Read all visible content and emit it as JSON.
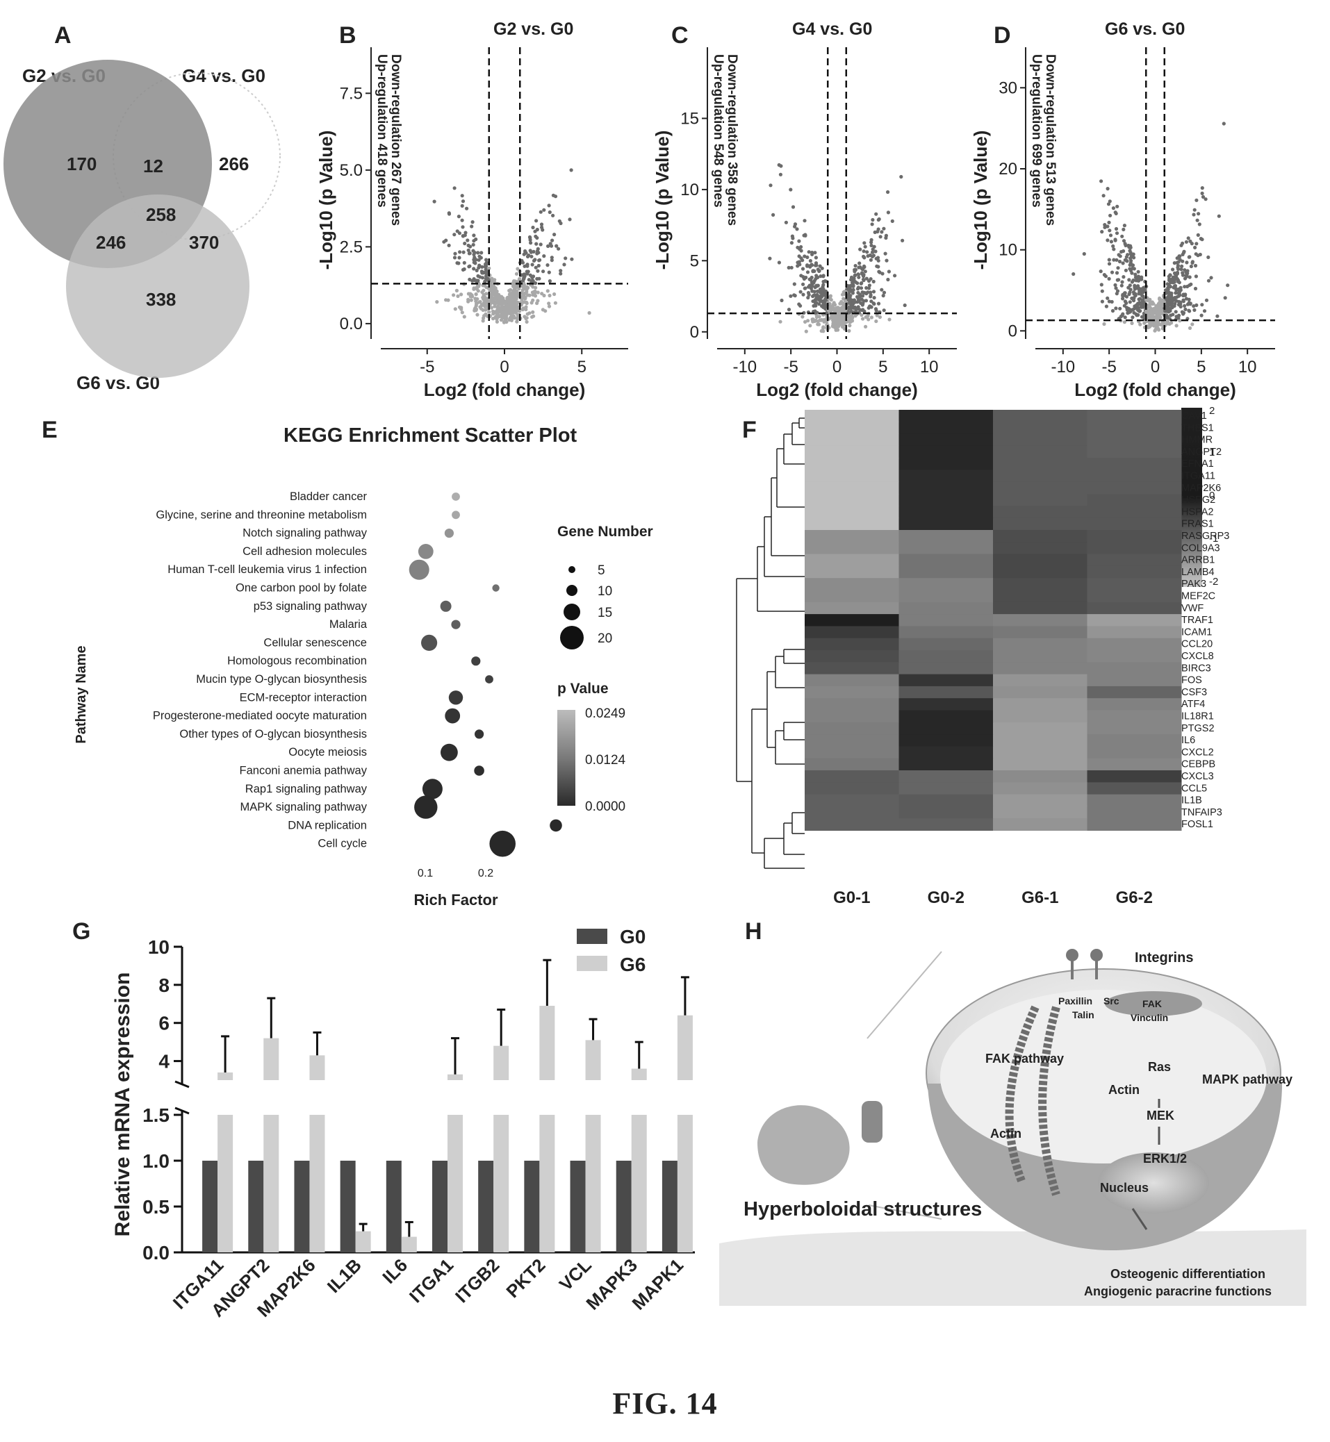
{
  "figure_caption": "FIG. 14",
  "panel_letters": {
    "A": "A",
    "B": "B",
    "C": "C",
    "D": "D",
    "E": "E",
    "F": "F",
    "G": "G",
    "H": "H"
  },
  "venn": {
    "sets": [
      "G2 vs. G0",
      "G4 vs. G0",
      "G6 vs. G0"
    ],
    "regions": {
      "g2_only": "170",
      "g2_g4": "12",
      "g4_only": "266",
      "all": "258",
      "g2_g6": "246",
      "g4_g6": "370",
      "g6_only": "338"
    }
  },
  "volcano": [
    {
      "title": "G2 vs. G0",
      "down": "Down-regulation 267 genes",
      "up": "Up-regulation 418 genes",
      "yticks": [
        "0.0",
        "2.5",
        "5.0",
        "7.5"
      ],
      "xticks": [
        "-5",
        "0",
        "5"
      ]
    },
    {
      "title": "G4 vs. G0",
      "down": "Down-regulation 358 genes",
      "up": "Up-regulation 548 genes",
      "yticks": [
        "0",
        "5",
        "10",
        "15"
      ],
      "xticks": [
        "-10",
        "-5",
        "0",
        "5",
        "10"
      ]
    },
    {
      "title": "G6 vs. G0",
      "down": "Down-regulation 513 genes",
      "up": "Up-regulation 699 genes",
      "yticks": [
        "0",
        "10",
        "20",
        "30"
      ],
      "xticks": [
        "-10",
        "-5",
        "0",
        "5",
        "10"
      ]
    }
  ],
  "volcano_axes": {
    "ylabel": "-Log10 (p Value)",
    "xlabel": "Log2 (fold change)"
  },
  "kegg": {
    "title": "KEGG Enrichment Scatter Plot",
    "ylabel": "Pathway Name",
    "xlabel": "Rich Factor",
    "xticks": [
      "0.1",
      "0.2"
    ],
    "size_legend_title": "Gene Number",
    "size_legend": [
      "5",
      "10",
      "15",
      "20"
    ],
    "color_legend_title": "p Value",
    "color_legend": [
      "0.0249",
      "0.0124",
      "0.0000"
    ]
  },
  "heatmap": {
    "columns": [
      "G0-1",
      "G0-2",
      "G6-1",
      "G6-2"
    ],
    "genes": [
      "CAV1",
      "THBS1",
      "HMMR",
      "ANGPT2",
      "EFNA1",
      "ITGA11",
      "MAP2K6",
      "HSPG2",
      "HSPA2",
      "FRAS1",
      "RASGRP3",
      "COL9A3",
      "ARRB1",
      "LAMB4",
      "PAK3",
      "MEF2C",
      "VWF",
      "TRAF1",
      "ICAM1",
      "CCL20",
      "CXCL8",
      "BIRC3",
      "FOS",
      "CSF3",
      "ATF4",
      "IL18R1",
      "PTGS2",
      "IL6",
      "CXCL2",
      "CEBPB",
      "CXCL3",
      "CCL5",
      "IL1B",
      "TNFAIP3",
      "FOSL1"
    ],
    "scale": [
      "2",
      "1",
      "0",
      "-1",
      "-2"
    ]
  },
  "bar": {
    "ylabel": "Relative mRNA expression",
    "legend": [
      "G0",
      "G6"
    ],
    "yticks_low": [
      "0.0",
      "0.5",
      "1.0",
      "1.5"
    ],
    "yticks_high": [
      "4",
      "6",
      "8",
      "10"
    ],
    "genes": [
      "ITGA11",
      "ANGPT2",
      "MAP2K6",
      "IL1B",
      "IL6",
      "ITGA1",
      "ITGB2",
      "PKT2",
      "VCL",
      "MAPK3",
      "MAPK1"
    ]
  },
  "schematic": {
    "labels": {
      "integrins": "Integrins",
      "paxillin": "Paxillin",
      "src": "Src",
      "fak": "FAK",
      "talin": "Talin",
      "vinculin": "Vinculin",
      "fak_pathway": "FAK pathway",
      "actin1": "Actin",
      "actin2": "Actin",
      "ras": "Ras",
      "mapk_pathway": "MAPK pathway",
      "mek": "MEK",
      "erk": "ERK1/2",
      "nucleus": "Nucleus",
      "hyper": "Hyperboloidal structures",
      "osteo": "Osteogenic differentiation",
      "angio": "Angiogenic paracrine functions"
    }
  },
  "chart_data": [
    {
      "type": "scatter",
      "title": "G2 vs. G0",
      "xlabel": "Log2 (fold change)",
      "ylabel": "-Log10 (p Value)",
      "xlim": [
        -8,
        8
      ],
      "ylim": [
        -0.5,
        9
      ],
      "threshold": {
        "log2fc": [
          -1,
          1
        ],
        "neg_log10_p": 1.3
      },
      "down_genes": 267,
      "up_genes": 418
    },
    {
      "type": "scatter",
      "title": "G4 vs. G0",
      "xlabel": "Log2 (fold change)",
      "ylabel": "-Log10 (p Value)",
      "xlim": [
        -13,
        13
      ],
      "ylim": [
        -0.5,
        20
      ],
      "threshold": {
        "log2fc": [
          -1,
          1
        ],
        "neg_log10_p": 1.3
      },
      "down_genes": 358,
      "up_genes": 548
    },
    {
      "type": "scatter",
      "title": "G6 vs. G0",
      "xlabel": "Log2 (fold change)",
      "ylabel": "-Log10 (p Value)",
      "xlim": [
        -13,
        13
      ],
      "ylim": [
        -1,
        35
      ],
      "threshold": {
        "log2fc": [
          -1,
          1
        ],
        "neg_log10_p": 1.3
      },
      "down_genes": 513,
      "up_genes": 699
    },
    {
      "type": "scatter",
      "title": "KEGG Enrichment Scatter Plot",
      "xlabel": "Rich Factor",
      "ylabel": "Pathway Name",
      "xlim": [
        0.0,
        0.25
      ],
      "points": [
        {
          "pathway": "Bladder cancer",
          "rich_factor": 0.1,
          "gene_number": 4,
          "p_value": 0.022
        },
        {
          "pathway": "Glycine, serine and threonine metabolism",
          "rich_factor": 0.1,
          "gene_number": 4,
          "p_value": 0.021
        },
        {
          "pathway": "Notch signaling pathway",
          "rich_factor": 0.09,
          "gene_number": 5,
          "p_value": 0.018
        },
        {
          "pathway": "Cell adhesion molecules",
          "rich_factor": 0.055,
          "gene_number": 11,
          "p_value": 0.016
        },
        {
          "pathway": "Human T-cell leukemia virus 1 infection",
          "rich_factor": 0.045,
          "gene_number": 16,
          "p_value": 0.015
        },
        {
          "pathway": "One carbon pool by folate",
          "rich_factor": 0.16,
          "gene_number": 3,
          "p_value": 0.012
        },
        {
          "pathway": "p53 signaling pathway",
          "rich_factor": 0.085,
          "gene_number": 7,
          "p_value": 0.009
        },
        {
          "pathway": "Malaria",
          "rich_factor": 0.1,
          "gene_number": 5,
          "p_value": 0.009
        },
        {
          "pathway": "Cellular senescence",
          "rich_factor": 0.06,
          "gene_number": 12,
          "p_value": 0.007
        },
        {
          "pathway": "Homologous recombination",
          "rich_factor": 0.13,
          "gene_number": 5,
          "p_value": 0.004
        },
        {
          "pathway": "Mucin type O-glycan biosynthesis",
          "rich_factor": 0.15,
          "gene_number": 4,
          "p_value": 0.004
        },
        {
          "pathway": "ECM-receptor interaction",
          "rich_factor": 0.1,
          "gene_number": 10,
          "p_value": 0.003
        },
        {
          "pathway": "Progesterone-mediated oocyte maturation",
          "rich_factor": 0.095,
          "gene_number": 11,
          "p_value": 0.002
        },
        {
          "pathway": "Other types of O-glycan biosynthesis",
          "rich_factor": 0.135,
          "gene_number": 5,
          "p_value": 0.002
        },
        {
          "pathway": "Oocyte meiosis",
          "rich_factor": 0.09,
          "gene_number": 13,
          "p_value": 0.001
        },
        {
          "pathway": "Fanconi anemia pathway",
          "rich_factor": 0.135,
          "gene_number": 6,
          "p_value": 0.001
        },
        {
          "pathway": "Rap1 signaling pathway",
          "rich_factor": 0.065,
          "gene_number": 16,
          "p_value": 0.0005
        },
        {
          "pathway": "MAPK signaling pathway",
          "rich_factor": 0.055,
          "gene_number": 19,
          "p_value": 0.0002
        },
        {
          "pathway": "DNA replication",
          "rich_factor": 0.25,
          "gene_number": 8,
          "p_value": 0.0001
        },
        {
          "pathway": "Cell cycle",
          "rich_factor": 0.17,
          "gene_number": 22,
          "p_value": 0.0
        }
      ]
    },
    {
      "type": "heatmap",
      "columns": [
        "G0-1",
        "G0-2",
        "G6-1",
        "G6-2"
      ],
      "rows": [
        "CAV1",
        "THBS1",
        "HMMR",
        "ANGPT2",
        "EFNA1",
        "ITGA11",
        "MAP2K6",
        "HSPG2",
        "HSPA2",
        "FRAS1",
        "RASGRP3",
        "COL9A3",
        "ARRB1",
        "LAMB4",
        "PAK3",
        "MEF2C",
        "VWF",
        "TRAF1",
        "ICAM1",
        "CCL20",
        "CXCL8",
        "BIRC3",
        "FOS",
        "CSF3",
        "ATF4",
        "IL18R1",
        "PTGS2",
        "IL6",
        "CXCL2",
        "CEBPB",
        "CXCL3",
        "CCL5",
        "IL1B",
        "TNFAIP3",
        "FOSL1"
      ],
      "scale": [
        -2,
        2
      ],
      "values": [
        [
          -1.6,
          1.6,
          0.5,
          0.4
        ],
        [
          -1.6,
          1.6,
          0.5,
          0.4
        ],
        [
          -1.6,
          1.6,
          0.5,
          0.4
        ],
        [
          -1.6,
          1.6,
          0.5,
          0.4
        ],
        [
          -1.6,
          1.6,
          0.5,
          0.5
        ],
        [
          -1.6,
          1.5,
          0.5,
          0.5
        ],
        [
          -1.6,
          1.5,
          0.5,
          0.5
        ],
        [
          -1.6,
          1.5,
          0.5,
          0.6
        ],
        [
          -1.6,
          1.5,
          0.6,
          0.6
        ],
        [
          -1.6,
          1.5,
          0.6,
          0.6
        ],
        [
          -0.6,
          -0.2,
          0.8,
          0.7
        ],
        [
          -0.6,
          -0.2,
          0.8,
          0.7
        ],
        [
          -0.9,
          0.0,
          0.9,
          0.6
        ],
        [
          -0.9,
          0.0,
          0.9,
          0.6
        ],
        [
          -0.5,
          -0.3,
          0.8,
          0.5
        ],
        [
          -0.5,
          -0.3,
          0.8,
          0.5
        ],
        [
          -0.6,
          -0.2,
          0.8,
          0.6
        ],
        [
          1.8,
          -0.2,
          -0.3,
          -0.9
        ],
        [
          1.2,
          0.0,
          -0.1,
          -0.7
        ],
        [
          0.9,
          0.2,
          -0.3,
          -0.4
        ],
        [
          0.8,
          0.3,
          -0.3,
          -0.4
        ],
        [
          0.7,
          0.3,
          -0.3,
          -0.3
        ],
        [
          -0.3,
          1.3,
          -0.7,
          -0.3
        ],
        [
          -0.4,
          0.6,
          -0.6,
          0.3
        ],
        [
          -0.3,
          1.4,
          -0.8,
          -0.3
        ],
        [
          -0.3,
          1.6,
          -0.8,
          -0.4
        ],
        [
          -0.2,
          1.6,
          -0.9,
          -0.4
        ],
        [
          -0.2,
          1.6,
          -0.9,
          -0.3
        ],
        [
          -0.2,
          1.5,
          -0.9,
          -0.3
        ],
        [
          -0.1,
          1.5,
          -0.9,
          -0.4
        ],
        [
          0.5,
          0.3,
          -0.5,
          1.1
        ],
        [
          0.5,
          0.3,
          -0.6,
          0.6
        ],
        [
          0.4,
          0.5,
          -0.8,
          -0.1
        ],
        [
          0.4,
          0.5,
          -0.8,
          -0.1
        ],
        [
          0.4,
          0.4,
          -0.7,
          -0.1
        ]
      ]
    },
    {
      "type": "bar",
      "ylabel": "Relative mRNA expression",
      "categories": [
        "ITGA11",
        "ANGPT2",
        "MAP2K6",
        "IL1B",
        "IL6",
        "ITGA1",
        "ITGB2",
        "PKT2",
        "VCL",
        "MAPK3",
        "MAPK1"
      ],
      "series": [
        {
          "name": "G0",
          "values": [
            1,
            1,
            1,
            1,
            1,
            1,
            1,
            1,
            1,
            1,
            1
          ]
        },
        {
          "name": "G6",
          "values": [
            3.4,
            5.2,
            4.3,
            0.23,
            0.17,
            3.3,
            4.8,
            6.9,
            5.1,
            3.6,
            6.4
          ],
          "error": [
            1.9,
            2.1,
            1.2,
            0.08,
            0.16,
            1.9,
            1.9,
            2.4,
            1.1,
            1.4,
            2.0
          ]
        }
      ],
      "ylim": [
        0,
        10
      ],
      "axis_break": [
        1.5,
        3.0
      ]
    }
  ]
}
